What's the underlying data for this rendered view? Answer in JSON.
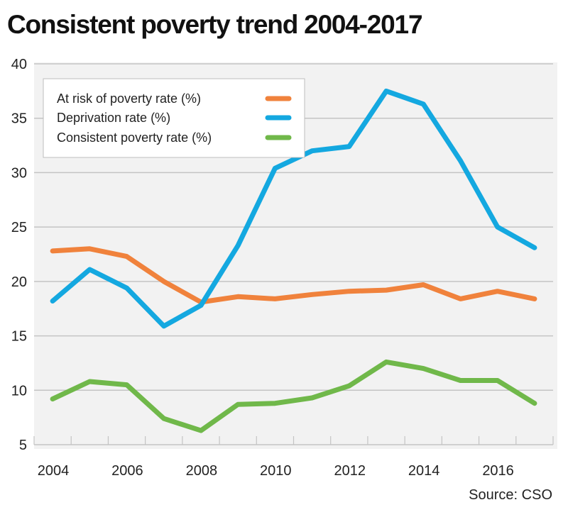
{
  "title": "Consistent poverty trend 2004-2017",
  "source": "Source: CSO",
  "chart_data": {
    "type": "line",
    "title": "Consistent poverty trend 2004-2017",
    "xlabel": "",
    "ylabel": "",
    "x": [
      2004,
      2005,
      2006,
      2007,
      2008,
      2009,
      2010,
      2011,
      2012,
      2013,
      2014,
      2015,
      2016,
      2017
    ],
    "xtick_labels": [
      "2004",
      "2006",
      "2008",
      "2010",
      "2012",
      "2014",
      "2016"
    ],
    "yticks": [
      5,
      10,
      15,
      20,
      25,
      30,
      35,
      40
    ],
    "ylim": [
      5,
      40
    ],
    "grid": "horizontal",
    "legend_position": "top-left",
    "series": [
      {
        "name": "At risk of poverty rate (%)",
        "color": "#f0823c",
        "values": [
          22.8,
          23.0,
          22.3,
          20.0,
          18.1,
          18.6,
          18.4,
          18.8,
          19.1,
          19.2,
          19.7,
          18.4,
          19.1,
          18.4
        ]
      },
      {
        "name": "Deprivation rate (%)",
        "color": "#14a8e0",
        "values": [
          18.2,
          21.1,
          19.4,
          15.9,
          17.8,
          23.3,
          30.4,
          32.0,
          32.4,
          37.5,
          36.3,
          31.1,
          25.0,
          23.1
        ]
      },
      {
        "name": "Consistent poverty rate (%)",
        "color": "#70b84a",
        "values": [
          9.2,
          10.8,
          10.5,
          7.4,
          6.3,
          8.7,
          8.8,
          9.3,
          10.4,
          12.6,
          12.0,
          10.9,
          10.9,
          8.8
        ]
      }
    ]
  }
}
